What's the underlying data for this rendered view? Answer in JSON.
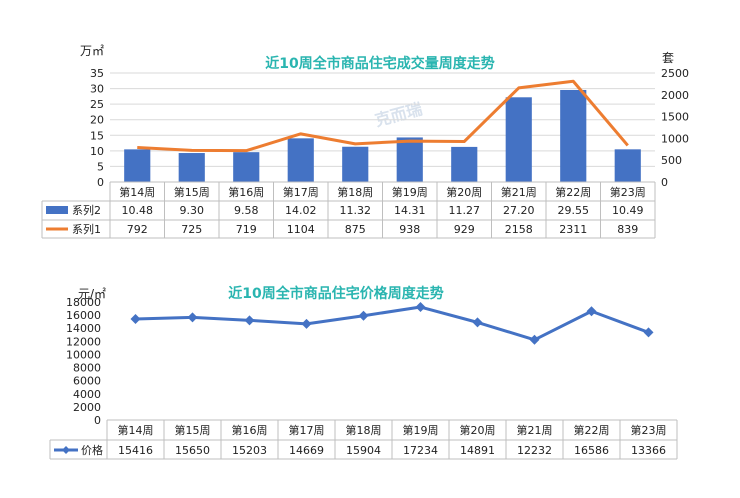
{
  "chart_data": [
    {
      "type": "bar",
      "title": "近10周全市商品住宅成交量周度走势",
      "ylabel_left": "万㎡",
      "ylabel_right": "套",
      "categories": [
        "第14周",
        "第15周",
        "第16周",
        "第17周",
        "第18周",
        "第19周",
        "第20周",
        "第21周",
        "第22周",
        "第23周"
      ],
      "ylim_left": [
        0,
        35
      ],
      "yticks_left": [
        "0",
        "5",
        "10",
        "15",
        "20",
        "25",
        "30",
        "35"
      ],
      "ylim_right": [
        0,
        2500
      ],
      "yticks_right": [
        "0",
        "500",
        "1000",
        "1500",
        "2000",
        "2500"
      ],
      "series": [
        {
          "name": "系列2",
          "kind": "bar",
          "axis": "left",
          "color": "#4472c4",
          "values": [
            10.48,
            9.3,
            9.58,
            14.02,
            11.32,
            14.31,
            11.27,
            27.2,
            29.55,
            10.49
          ],
          "labels": [
            "10.48",
            "9.30",
            "9.58",
            "14.02",
            "11.32",
            "14.31",
            "11.27",
            "27.20",
            "29.55",
            "10.49"
          ]
        },
        {
          "name": "系列1",
          "kind": "line",
          "axis": "right",
          "color": "#ed7d31",
          "values": [
            792,
            725,
            719,
            1104,
            875,
            938,
            929,
            2158,
            2311,
            839
          ],
          "labels": [
            "792",
            "725",
            "719",
            "1104",
            "875",
            "938",
            "929",
            "2158",
            "2311",
            "839"
          ]
        }
      ],
      "legend": "data-table",
      "watermark": "克而瑞"
    },
    {
      "type": "line",
      "title": "近10周全市商品住宅价格周度走势",
      "ylabel": "元/㎡",
      "categories": [
        "第14周",
        "第15周",
        "第16周",
        "第17周",
        "第18周",
        "第19周",
        "第20周",
        "第21周",
        "第22周",
        "第23周"
      ],
      "ylim": [
        0,
        18000
      ],
      "yticks": [
        "0",
        "2000",
        "4000",
        "6000",
        "8000",
        "10000",
        "12000",
        "14000",
        "16000",
        "18000"
      ],
      "series": [
        {
          "name": "价格",
          "color": "#4472c4",
          "values": [
            15416,
            15650,
            15203,
            14669,
            15904,
            17234,
            14891,
            12232,
            16586,
            13366
          ],
          "labels": [
            "15416",
            "15650",
            "15203",
            "14669",
            "15904",
            "17234",
            "14891",
            "12232",
            "16586",
            "13366"
          ]
        }
      ],
      "legend": "data-table"
    }
  ]
}
